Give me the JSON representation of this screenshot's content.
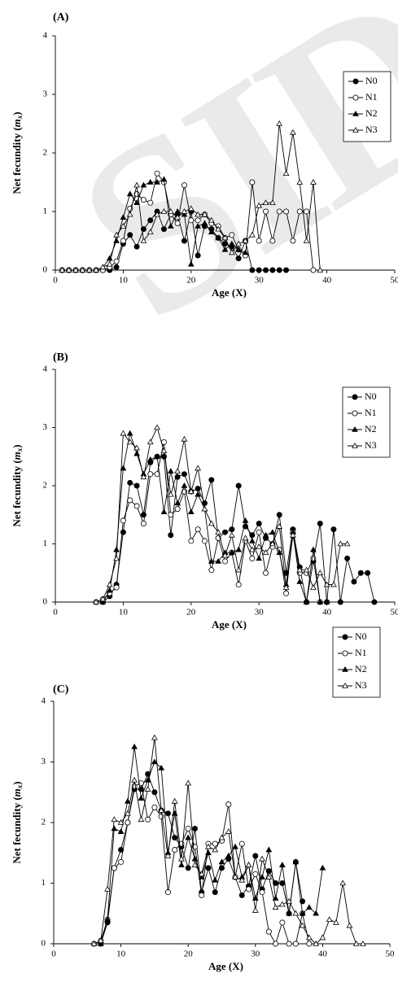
{
  "chart_data": [
    {
      "type": "line",
      "panel_label": "(A)",
      "xlabel": "Age (X)",
      "ylabel_main": "Net fecundity (",
      "ylabel_var": "m",
      "ylabel_sub": "x",
      "ylabel_close": ")",
      "xlim": [
        0,
        50
      ],
      "ylim": [
        0,
        4
      ],
      "xticks": [
        "0",
        "10",
        "20",
        "30",
        "40",
        "50"
      ],
      "yticks": [
        "0",
        "1",
        "2",
        "3",
        "4"
      ],
      "grid": false,
      "legend": "top-right",
      "series": [
        {
          "name": "N0",
          "marker": "filled-circle",
          "x": [
            1,
            2,
            3,
            4,
            5,
            6,
            7,
            8,
            9,
            10,
            11,
            12,
            13,
            14,
            15,
            16,
            17,
            18,
            19,
            20,
            21,
            22,
            23,
            24,
            25,
            26,
            27,
            28,
            29,
            30,
            31,
            32,
            33,
            34
          ],
          "values": [
            0,
            0,
            0,
            0,
            0,
            0,
            0,
            0,
            0.05,
            0.45,
            0.6,
            0.4,
            0.7,
            0.85,
            1.0,
            0.7,
            0.95,
            0.95,
            0.5,
            1.0,
            0.25,
            0.75,
            0.7,
            0.55,
            0.45,
            0.4,
            0.2,
            0.5,
            0,
            0,
            0,
            0,
            0,
            0
          ]
        },
        {
          "name": "N1",
          "marker": "open-circle",
          "x": [
            1,
            2,
            3,
            4,
            5,
            6,
            7,
            8,
            9,
            10,
            11,
            12,
            13,
            14,
            15,
            16,
            17,
            18,
            19,
            20,
            21,
            22,
            23,
            24,
            25,
            26,
            27,
            28,
            29,
            30,
            31,
            32,
            33,
            34,
            35,
            36,
            37,
            38
          ],
          "values": [
            0,
            0,
            0,
            0,
            0,
            0,
            0,
            0.05,
            0.15,
            0.5,
            1.05,
            1.3,
            1.2,
            1.15,
            1.65,
            1.5,
            0.95,
            0.8,
            1.45,
            0.85,
            0.85,
            0.95,
            0.8,
            0.75,
            0.55,
            0.6,
            0.35,
            0.25,
            1.5,
            0.5,
            1.0,
            0.5,
            1.0,
            1.0,
            0.5,
            1.0,
            1.0,
            0
          ]
        },
        {
          "name": "N2",
          "marker": "filled-triangle",
          "x": [
            1,
            2,
            3,
            4,
            5,
            6,
            7,
            8,
            9,
            10,
            11,
            12,
            13,
            14,
            15,
            16,
            17,
            18,
            19,
            20,
            21,
            22,
            23,
            24,
            25,
            26,
            27,
            28
          ],
          "values": [
            0,
            0,
            0,
            0,
            0,
            0,
            0.05,
            0.2,
            0.5,
            0.9,
            1.3,
            1.15,
            1.45,
            1.5,
            1.5,
            1.55,
            0.75,
            1.0,
            0.95,
            0.1,
            0.75,
            0.8,
            0.65,
            0.55,
            0.35,
            0.45,
            0.35,
            0.3
          ]
        },
        {
          "name": "N3",
          "marker": "open-triangle",
          "x": [
            1,
            2,
            3,
            4,
            5,
            6,
            7,
            8,
            9,
            10,
            11,
            12,
            13,
            14,
            15,
            16,
            17,
            18,
            19,
            20,
            21,
            22,
            23,
            24,
            25,
            26,
            27,
            28,
            29,
            30,
            31,
            32,
            33,
            34,
            35,
            36,
            37,
            38,
            39
          ],
          "values": [
            0,
            0,
            0,
            0,
            0,
            0,
            0.05,
            0.1,
            0.6,
            0.75,
            0.95,
            1.45,
            0.5,
            0.65,
            0.95,
            1.0,
            1.0,
            0.9,
            1.0,
            1.05,
            0.95,
            0.95,
            0.85,
            0.7,
            0.55,
            0.3,
            0.45,
            0.5,
            0.6,
            1.1,
            1.15,
            1.15,
            2.5,
            1.65,
            2.35,
            1.5,
            0.5,
            1.5,
            0
          ]
        }
      ]
    },
    {
      "type": "line",
      "panel_label": "(B)",
      "xlabel": "Age (X)",
      "ylabel_main": "Net fecundity (",
      "ylabel_var": "m",
      "ylabel_sub": "x",
      "ylabel_close": ")",
      "xlim": [
        0,
        50
      ],
      "ylim": [
        0,
        4
      ],
      "xticks": [
        "0",
        "10",
        "20",
        "30",
        "40",
        "50"
      ],
      "yticks": [
        "0",
        "1",
        "2",
        "3",
        "4"
      ],
      "grid": false,
      "legend": "top-right",
      "series": [
        {
          "name": "N0",
          "marker": "filled-circle",
          "x": [
            7,
            8,
            9,
            10,
            11,
            12,
            13,
            14,
            15,
            16,
            17,
            18,
            19,
            20,
            21,
            22,
            23,
            24,
            25,
            26,
            27,
            28,
            29,
            30,
            31,
            32,
            33,
            34,
            35,
            36,
            37,
            38,
            39,
            40,
            41,
            42,
            43,
            44,
            45,
            46,
            47
          ],
          "values": [
            0,
            0.1,
            0.3,
            1.2,
            2.05,
            2.0,
            1.5,
            2.4,
            2.5,
            2.5,
            1.15,
            2.15,
            2.2,
            1.9,
            1.95,
            1.7,
            2.1,
            1.1,
            1.2,
            1.25,
            2.0,
            1.3,
            1.15,
            1.35,
            1.1,
            1.0,
            1.5,
            0.5,
            1.25,
            0.6,
            0.0,
            0.7,
            1.35,
            0.0,
            1.25,
            0.0,
            0.75,
            0.35,
            0.5,
            0.5,
            0
          ]
        },
        {
          "name": "N1",
          "marker": "open-circle",
          "x": [
            6,
            7,
            8,
            9,
            10,
            11,
            12,
            13,
            14,
            15,
            16,
            17,
            18,
            19,
            20,
            21,
            22,
            23,
            24,
            25,
            26,
            27,
            28,
            29,
            30,
            31,
            32,
            33,
            34,
            35,
            36,
            37,
            38,
            39
          ],
          "values": [
            0,
            0.05,
            0.15,
            0.25,
            1.4,
            1.75,
            1.65,
            1.35,
            2.2,
            2.2,
            2.75,
            1.5,
            1.6,
            1.9,
            1.05,
            1.25,
            1.05,
            0.55,
            1.1,
            0.7,
            0.85,
            0.3,
            1.05,
            0.75,
            1.2,
            0.5,
            0.95,
            0.9,
            0.15,
            1.2,
            0.5,
            0.5,
            0.75,
            0
          ]
        },
        {
          "name": "N2",
          "marker": "filled-triangle",
          "x": [
            7,
            8,
            9,
            10,
            11,
            12,
            13,
            14,
            15,
            16,
            17,
            18,
            19,
            20,
            21,
            22,
            23,
            24,
            25,
            26,
            27,
            28,
            29,
            30,
            31,
            32,
            33,
            34,
            35,
            36,
            37,
            38,
            39,
            40
          ],
          "values": [
            0,
            0.2,
            0.9,
            2.3,
            2.9,
            2.55,
            2.2,
            2.45,
            2.5,
            1.55,
            2.25,
            1.7,
            2.0,
            1.55,
            1.85,
            1.6,
            0.7,
            0.7,
            0.85,
            0.85,
            0.9,
            1.4,
            1.05,
            0.75,
            1.15,
            1.2,
            0.85,
            0.3,
            1.2,
            0.35,
            0.0,
            0.9,
            0.0,
            0
          ]
        },
        {
          "name": "N3",
          "marker": "open-triangle",
          "x": [
            6,
            7,
            8,
            9,
            10,
            11,
            12,
            13,
            14,
            15,
            16,
            17,
            18,
            19,
            20,
            21,
            22,
            23,
            24,
            25,
            26,
            27,
            28,
            29,
            30,
            31,
            32,
            33,
            34,
            35,
            36,
            37,
            38,
            39,
            40,
            41,
            42,
            43
          ],
          "values": [
            0,
            0.05,
            0.3,
            0.75,
            2.9,
            2.75,
            2.65,
            2.15,
            2.75,
            3.0,
            2.6,
            1.85,
            2.25,
            2.8,
            1.9,
            2.3,
            1.6,
            1.35,
            1.2,
            0.8,
            1.15,
            0.55,
            1.1,
            0.9,
            0.95,
            0.85,
            1.0,
            1.3,
            0.25,
            1.15,
            0.55,
            0.55,
            0.25,
            0.5,
            0.3,
            0.3,
            1.0,
            1.0
          ]
        }
      ]
    },
    {
      "type": "line",
      "panel_label": "(C)",
      "xlabel": "Age (X)",
      "ylabel_main": "Net fecundity (",
      "ylabel_var": "m",
      "ylabel_sub": "x",
      "ylabel_close": ")",
      "xlim": [
        0,
        50
      ],
      "ylim": [
        0,
        4
      ],
      "xticks": [
        "0",
        "10",
        "20",
        "30",
        "40",
        "50"
      ],
      "yticks": [
        "0",
        "1",
        "2",
        "3",
        "4"
      ],
      "grid": false,
      "legend": "top-right",
      "series": [
        {
          "name": "N0",
          "marker": "filled-circle",
          "x": [
            7,
            8,
            9,
            10,
            11,
            12,
            13,
            14,
            15,
            16,
            17,
            18,
            19,
            20,
            21,
            22,
            23,
            24,
            25,
            26,
            27,
            28,
            29,
            30,
            31,
            32,
            33,
            34,
            35,
            36,
            37
          ],
          "values": [
            0,
            0.35,
            1.25,
            1.55,
            2.0,
            2.55,
            2.55,
            2.8,
            2.5,
            2.2,
            2.15,
            1.75,
            1.6,
            1.25,
            1.9,
            0.85,
            1.25,
            0.85,
            1.25,
            1.4,
            1.1,
            0.8,
            0.95,
            1.45,
            0.9,
            1.2,
            1.0,
            1.0,
            0.5,
            1.35,
            0.7
          ]
        },
        {
          "name": "N1",
          "marker": "open-circle",
          "x": [
            6,
            7,
            8,
            9,
            10,
            11,
            12,
            13,
            14,
            15,
            16,
            17,
            18,
            19,
            20,
            21,
            22,
            23,
            24,
            25,
            26,
            27,
            28,
            29,
            30,
            31,
            32,
            33,
            34,
            35,
            36,
            37,
            38
          ],
          "values": [
            0,
            0.05,
            0.4,
            1.25,
            1.35,
            2.0,
            2.6,
            2.65,
            2.05,
            2.25,
            2.1,
            0.85,
            1.55,
            1.65,
            1.9,
            1.6,
            0.8,
            1.65,
            1.65,
            1.7,
            2.3,
            1.1,
            1.65,
            0.9,
            1.15,
            0.85,
            0.2,
            0.0,
            0.35,
            0.0,
            0.0,
            0.5,
            0
          ]
        },
        {
          "name": "N2",
          "marker": "filled-triangle",
          "x": [
            7,
            8,
            9,
            10,
            11,
            12,
            13,
            14,
            15,
            16,
            17,
            18,
            19,
            20,
            21,
            22,
            23,
            24,
            25,
            26,
            27,
            28,
            29,
            30,
            31,
            32,
            33,
            34,
            35,
            36,
            37,
            38,
            39,
            40
          ],
          "values": [
            0,
            0.4,
            1.9,
            1.85,
            2.35,
            3.25,
            2.4,
            2.7,
            3.0,
            2.9,
            1.5,
            2.15,
            1.3,
            1.75,
            1.4,
            1.1,
            1.5,
            1.05,
            1.35,
            1.45,
            1.6,
            1.1,
            1.3,
            0.75,
            1.1,
            1.55,
            0.75,
            1.3,
            0.5,
            1.35,
            0.5,
            0.6,
            0.5,
            1.25
          ]
        },
        {
          "name": "N3",
          "marker": "open-triangle",
          "x": [
            6,
            7,
            8,
            9,
            10,
            11,
            12,
            13,
            14,
            15,
            16,
            17,
            18,
            19,
            20,
            21,
            22,
            23,
            24,
            25,
            26,
            27,
            28,
            29,
            30,
            31,
            32,
            33,
            34,
            35,
            36,
            37,
            38,
            39,
            40,
            41,
            42,
            43,
            44,
            45,
            46
          ],
          "values": [
            0,
            0.05,
            0.9,
            2.05,
            2.0,
            2.15,
            2.7,
            2.05,
            2.55,
            3.4,
            2.2,
            1.45,
            2.35,
            1.4,
            2.65,
            1.3,
            1.15,
            1.6,
            1.55,
            1.75,
            1.85,
            1.1,
            1.05,
            1.3,
            0.55,
            1.4,
            1.1,
            0.6,
            0.65,
            0.7,
            0.5,
            0.3,
            0.1,
            0.0,
            0.1,
            0.4,
            0.35,
            1.0,
            0.3,
            0.0,
            0.0
          ]
        }
      ]
    }
  ],
  "watermark": "SID"
}
